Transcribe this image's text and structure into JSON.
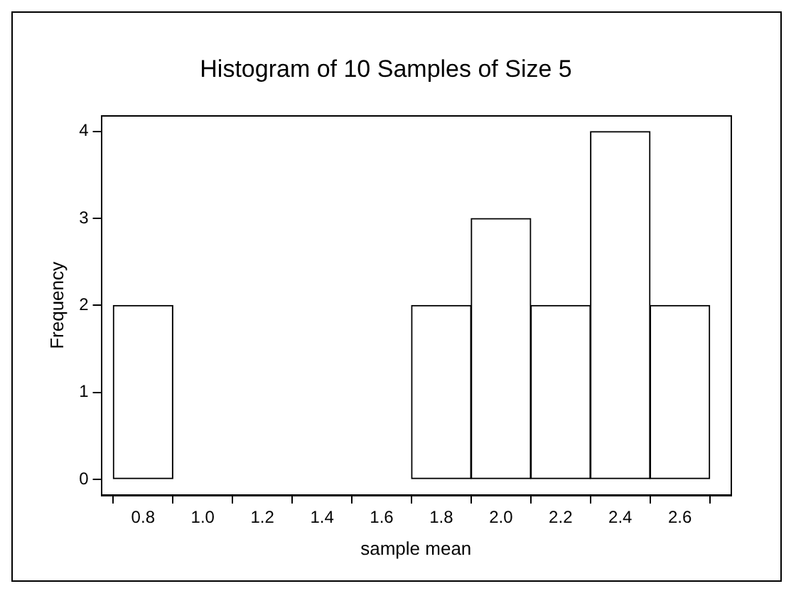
{
  "chart_data": {
    "type": "histogram",
    "title": "Histogram of 10 Samples of Size 5",
    "xlabel": "sample mean",
    "ylabel": "Frequency",
    "bins": [
      0.7,
      0.9,
      1.1,
      1.3,
      1.5,
      1.7,
      1.9,
      2.1,
      2.3,
      2.5,
      2.7
    ],
    "values": [
      2,
      0,
      0,
      0,
      0,
      2,
      3,
      2,
      4,
      2
    ],
    "color": "#ffffff",
    "xlim": [
      0.66,
      2.77
    ],
    "xticks": [
      0.8,
      {
        "value": 1,
        "label": "1.0"
      },
      1.2,
      1.4,
      1.6,
      1.8,
      {
        "value": 2,
        "label": "2.0"
      },
      2.2,
      2.4,
      2.6
    ],
    "ylim": [
      -0.18,
      4.18
    ],
    "yticks": [
      0,
      1,
      2,
      3,
      4
    ],
    "grid": false,
    "legend": false
  }
}
